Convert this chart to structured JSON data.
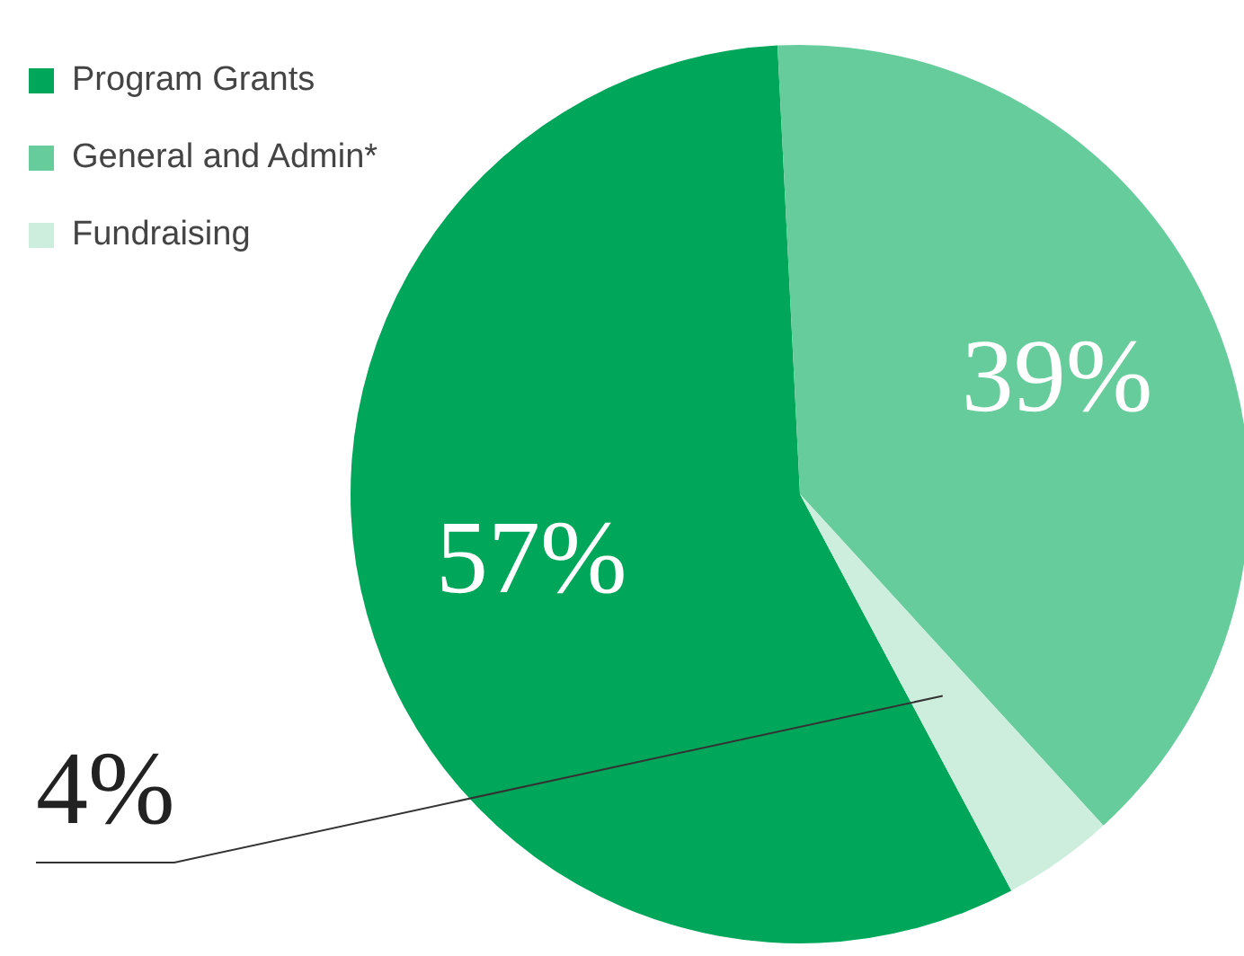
{
  "chart_data": {
    "type": "pie",
    "categories": [
      "Program Grants",
      "General and Admin*",
      "Fundraising"
    ],
    "values": [
      57,
      39,
      4
    ],
    "colors": [
      "#00a65a",
      "#66cc9c",
      "#cdeedc"
    ],
    "value_labels": [
      "57%",
      "39%",
      "4%"
    ],
    "legend": "top left"
  }
}
